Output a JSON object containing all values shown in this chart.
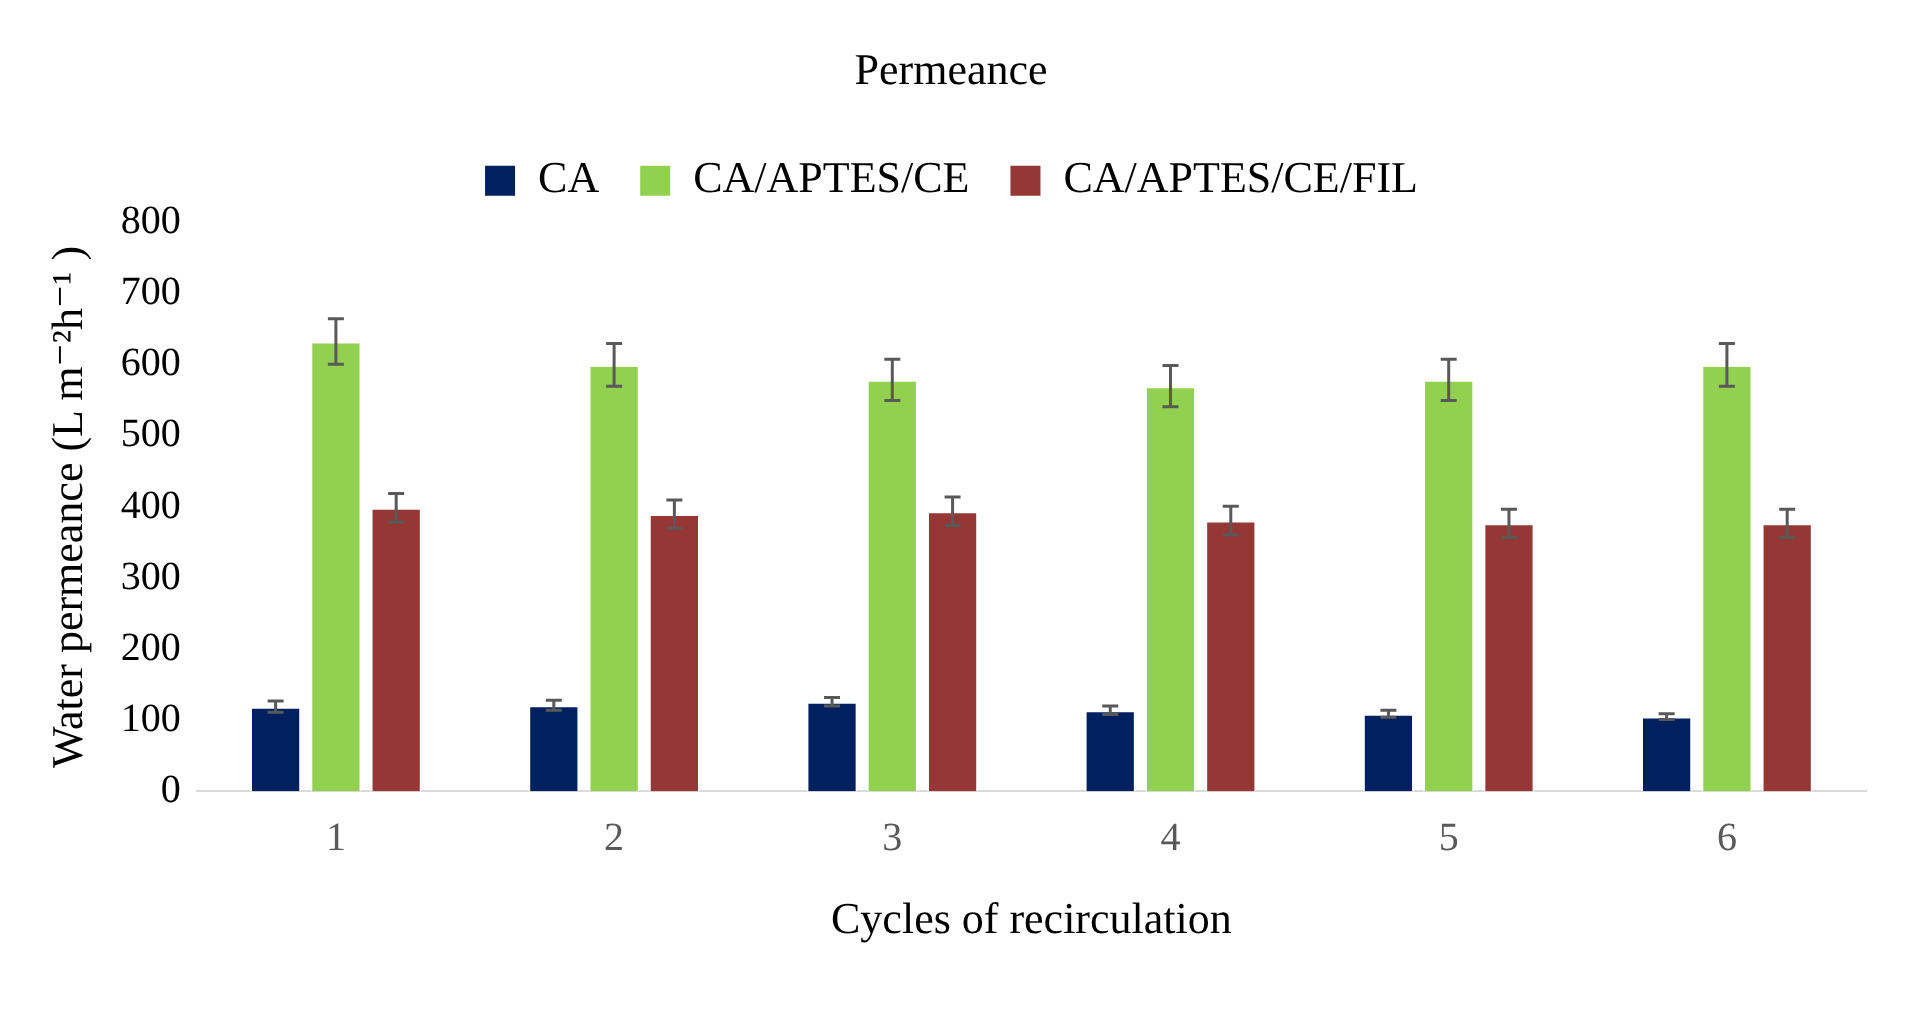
{
  "chart_data": {
    "type": "bar",
    "title": "Permeance",
    "xlabel": "Cycles of recirculation",
    "ylabel": "Water permeance (L m⁻²h⁻¹ )",
    "categories": [
      "1",
      "2",
      "3",
      "4",
      "5",
      "6"
    ],
    "series": [
      {
        "name": "CA",
        "color": "#002060",
        "values": [
          119,
          121,
          126,
          114,
          109,
          105
        ],
        "errors": [
          8,
          7,
          6,
          6,
          5,
          4
        ]
      },
      {
        "name": "CA/APTES/CE",
        "color": "#92d050",
        "values": [
          633,
          600,
          579,
          570,
          579,
          600
        ],
        "errors": [
          32,
          30,
          29,
          29,
          29,
          30
        ]
      },
      {
        "name": "CA/APTES/CE/FIL",
        "color": "#953735",
        "values": [
          399,
          390,
          394,
          381,
          377,
          377
        ],
        "errors": [
          20,
          20,
          20,
          20,
          20,
          20
        ]
      }
    ],
    "ylim": [
      0,
      800
    ],
    "yticks": [
      0,
      100,
      200,
      300,
      400,
      500,
      600,
      700,
      800
    ],
    "grid": false,
    "legend": "top"
  }
}
